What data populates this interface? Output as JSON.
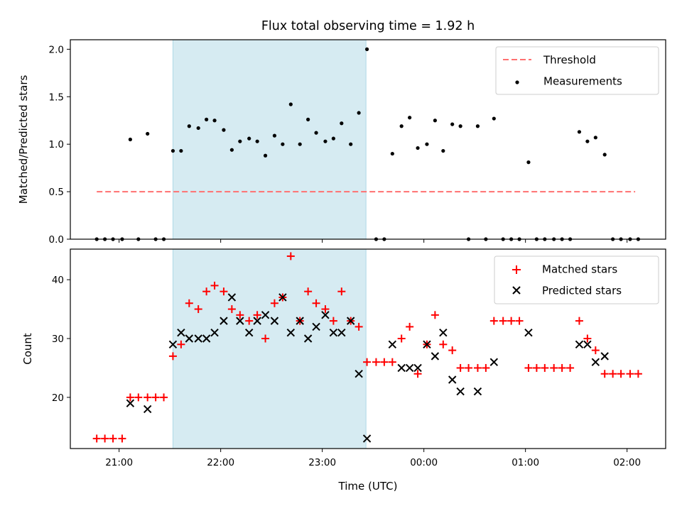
{
  "chart_data": [
    {
      "type": "scatter",
      "title": "Flux total observing time = 1.92 h",
      "xlabel": "",
      "ylabel": "Matched/Predicted stars",
      "x_unit": "hours since 21:00 UTC",
      "xlim": [
        -0.48,
        5.38
      ],
      "ylim": [
        0.0,
        2.1
      ],
      "x_ticks": [
        0,
        1,
        2,
        3,
        4,
        5
      ],
      "y_ticks": [
        0.0,
        0.5,
        1.0,
        1.5,
        2.0
      ],
      "y_tick_labels": [
        "0.0",
        "0.5",
        "1.0",
        "1.5",
        "2.0"
      ],
      "shaded_region": {
        "x_start": 0.53,
        "x_end": 2.43,
        "color": "#add8e6"
      },
      "threshold": {
        "name": "Threshold",
        "y": 0.5,
        "x_start": -0.22,
        "x_end": 5.08,
        "color": "#ff7070"
      },
      "legend": {
        "position": "top-right",
        "entries": [
          "Threshold",
          "Measurements"
        ]
      },
      "series": [
        {
          "name": "Measurements",
          "color": "#000000",
          "marker": "dot",
          "points": [
            [
              -0.22,
              0
            ],
            [
              -0.14,
              0
            ],
            [
              -0.06,
              0
            ],
            [
              0.03,
              0
            ],
            [
              0.11,
              1.05
            ],
            [
              0.19,
              0
            ],
            [
              0.28,
              1.11
            ],
            [
              0.36,
              0
            ],
            [
              0.44,
              0
            ],
            [
              0.53,
              0.93
            ],
            [
              0.61,
              0.93
            ],
            [
              0.69,
              1.19
            ],
            [
              0.78,
              1.17
            ],
            [
              0.86,
              1.26
            ],
            [
              0.94,
              1.25
            ],
            [
              1.03,
              1.15
            ],
            [
              1.11,
              0.94
            ],
            [
              1.19,
              1.03
            ],
            [
              1.28,
              1.06
            ],
            [
              1.36,
              1.03
            ],
            [
              1.44,
              0.88
            ],
            [
              1.53,
              1.09
            ],
            [
              1.61,
              1.0
            ],
            [
              1.69,
              1.42
            ],
            [
              1.78,
              1.0
            ],
            [
              1.86,
              1.26
            ],
            [
              1.94,
              1.12
            ],
            [
              2.03,
              1.03
            ],
            [
              2.11,
              1.06
            ],
            [
              2.19,
              1.22
            ],
            [
              2.28,
              1.0
            ],
            [
              2.36,
              1.33
            ],
            [
              2.44,
              2.0
            ],
            [
              2.53,
              0
            ],
            [
              2.61,
              0
            ],
            [
              2.69,
              0.9
            ],
            [
              2.78,
              1.19
            ],
            [
              2.86,
              1.28
            ],
            [
              2.94,
              0.96
            ],
            [
              3.03,
              1.0
            ],
            [
              3.11,
              1.25
            ],
            [
              3.19,
              0.93
            ],
            [
              3.28,
              1.21
            ],
            [
              3.36,
              1.19
            ],
            [
              3.44,
              0
            ],
            [
              3.53,
              1.19
            ],
            [
              3.61,
              0
            ],
            [
              3.69,
              1.27
            ],
            [
              3.78,
              0
            ],
            [
              3.86,
              0
            ],
            [
              3.94,
              0
            ],
            [
              4.03,
              0.81
            ],
            [
              4.11,
              0
            ],
            [
              4.19,
              0
            ],
            [
              4.28,
              0
            ],
            [
              4.36,
              0
            ],
            [
              4.44,
              0
            ],
            [
              4.53,
              1.13
            ],
            [
              4.61,
              1.03
            ],
            [
              4.69,
              1.07
            ],
            [
              4.78,
              0.89
            ],
            [
              4.86,
              0
            ],
            [
              4.94,
              0
            ],
            [
              5.03,
              0
            ],
            [
              5.11,
              0
            ]
          ]
        }
      ]
    },
    {
      "type": "scatter",
      "title": "",
      "xlabel": "Time (UTC)",
      "ylabel": "Count",
      "x_unit": "hours since 21:00 UTC",
      "xlim": [
        -0.48,
        5.38
      ],
      "ylim": [
        11.3,
        45.2
      ],
      "x_ticks": [
        0,
        1,
        2,
        3,
        4,
        5
      ],
      "x_tick_labels": [
        "21:00",
        "22:00",
        "23:00",
        "00:00",
        "01:00",
        "02:00"
      ],
      "y_ticks": [
        20,
        30,
        40
      ],
      "y_tick_labels": [
        "20",
        "30",
        "40"
      ],
      "shaded_region": {
        "x_start": 0.53,
        "x_end": 2.43,
        "color": "#add8e6"
      },
      "legend": {
        "position": "top-right",
        "entries": [
          "Matched stars",
          "Predicted stars"
        ]
      },
      "series": [
        {
          "name": "Matched stars",
          "color": "#ff0000",
          "marker": "plus",
          "points": [
            [
              -0.22,
              13
            ],
            [
              -0.14,
              13
            ],
            [
              -0.06,
              13
            ],
            [
              0.03,
              13
            ],
            [
              0.11,
              20
            ],
            [
              0.19,
              20
            ],
            [
              0.28,
              20
            ],
            [
              0.36,
              20
            ],
            [
              0.44,
              20
            ],
            [
              0.53,
              27
            ],
            [
              0.61,
              29
            ],
            [
              0.69,
              36
            ],
            [
              0.78,
              35
            ],
            [
              0.86,
              38
            ],
            [
              0.94,
              39
            ],
            [
              1.03,
              38
            ],
            [
              1.11,
              35
            ],
            [
              1.19,
              34
            ],
            [
              1.28,
              33
            ],
            [
              1.36,
              34
            ],
            [
              1.44,
              30
            ],
            [
              1.53,
              36
            ],
            [
              1.61,
              37
            ],
            [
              1.69,
              44
            ],
            [
              1.78,
              33
            ],
            [
              1.86,
              38
            ],
            [
              1.94,
              36
            ],
            [
              2.03,
              35
            ],
            [
              2.11,
              33
            ],
            [
              2.19,
              38
            ],
            [
              2.28,
              33
            ],
            [
              2.36,
              32
            ],
            [
              2.44,
              26
            ],
            [
              2.53,
              26
            ],
            [
              2.61,
              26
            ],
            [
              2.69,
              26
            ],
            [
              2.78,
              30
            ],
            [
              2.86,
              32
            ],
            [
              2.94,
              24
            ],
            [
              3.03,
              29
            ],
            [
              3.11,
              34
            ],
            [
              3.19,
              29
            ],
            [
              3.28,
              28
            ],
            [
              3.36,
              25
            ],
            [
              3.44,
              25
            ],
            [
              3.53,
              25
            ],
            [
              3.61,
              25
            ],
            [
              3.69,
              33
            ],
            [
              3.78,
              33
            ],
            [
              3.86,
              33
            ],
            [
              3.94,
              33
            ],
            [
              4.03,
              25
            ],
            [
              4.11,
              25
            ],
            [
              4.19,
              25
            ],
            [
              4.28,
              25
            ],
            [
              4.36,
              25
            ],
            [
              4.44,
              25
            ],
            [
              4.53,
              33
            ],
            [
              4.61,
              30
            ],
            [
              4.69,
              28
            ],
            [
              4.78,
              24
            ],
            [
              4.86,
              24
            ],
            [
              4.94,
              24
            ],
            [
              5.03,
              24
            ],
            [
              5.11,
              24
            ]
          ]
        },
        {
          "name": "Predicted stars",
          "color": "#000000",
          "marker": "x",
          "points": [
            [
              0.11,
              19
            ],
            [
              0.28,
              18
            ],
            [
              0.53,
              29
            ],
            [
              0.61,
              31
            ],
            [
              0.69,
              30
            ],
            [
              0.78,
              30
            ],
            [
              0.86,
              30
            ],
            [
              0.94,
              31
            ],
            [
              1.03,
              33
            ],
            [
              1.11,
              37
            ],
            [
              1.19,
              33
            ],
            [
              1.28,
              31
            ],
            [
              1.36,
              33
            ],
            [
              1.44,
              34
            ],
            [
              1.53,
              33
            ],
            [
              1.61,
              37
            ],
            [
              1.69,
              31
            ],
            [
              1.78,
              33
            ],
            [
              1.86,
              30
            ],
            [
              1.94,
              32
            ],
            [
              2.03,
              34
            ],
            [
              2.11,
              31
            ],
            [
              2.19,
              31
            ],
            [
              2.28,
              33
            ],
            [
              2.36,
              24
            ],
            [
              2.44,
              13
            ],
            [
              2.69,
              29
            ],
            [
              2.78,
              25
            ],
            [
              2.86,
              25
            ],
            [
              2.94,
              25
            ],
            [
              3.03,
              29
            ],
            [
              3.11,
              27
            ],
            [
              3.19,
              31
            ],
            [
              3.28,
              23
            ],
            [
              3.36,
              21
            ],
            [
              3.53,
              21
            ],
            [
              3.69,
              26
            ],
            [
              4.03,
              31
            ],
            [
              4.53,
              29
            ],
            [
              4.61,
              29
            ],
            [
              4.69,
              26
            ],
            [
              4.78,
              27
            ]
          ]
        }
      ]
    }
  ]
}
